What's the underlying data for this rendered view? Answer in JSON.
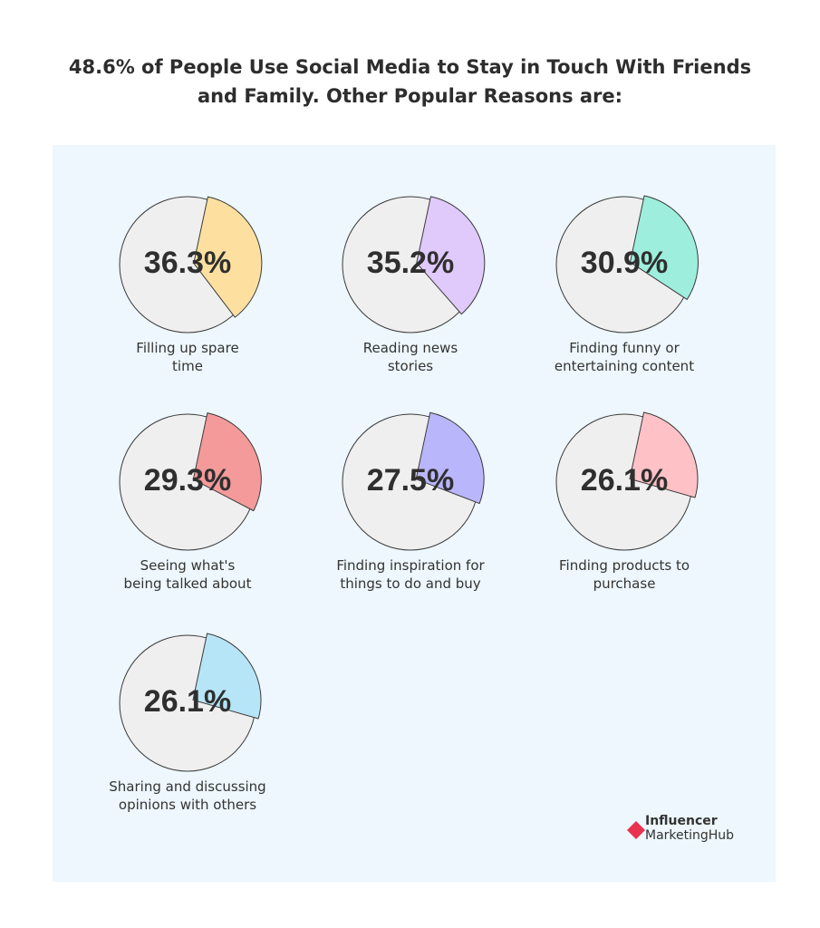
{
  "title": {
    "line1": "48.6% of People Use Social Media to Stay in Touch With Friends",
    "line2": "and Family.  Other Popular Reasons are:"
  },
  "chart_data": {
    "type": "pie",
    "title": "48.6% of People Use Social Media to Stay in Touch With Friends and Family.  Other Popular Reasons are:",
    "items": [
      {
        "label": "Filling up spare time",
        "label_lines": [
          "Filling up spare",
          "time"
        ],
        "value": 36.3,
        "display": "36.3%",
        "color": "#fde0a0"
      },
      {
        "label": "Reading news stories",
        "label_lines": [
          "Reading news",
          "stories"
        ],
        "value": 35.2,
        "display": "35.2%",
        "color": "#e0cafc"
      },
      {
        "label": "Finding funny or entertaining content",
        "label_lines": [
          "Finding funny or",
          "entertaining content"
        ],
        "value": 30.9,
        "display": "30.9%",
        "color": "#9eeedd"
      },
      {
        "label": "Seeing what's being talked about",
        "label_lines": [
          "Seeing what's",
          "being talked about"
        ],
        "value": 29.3,
        "display": "29.3%",
        "color": "#f49a9a"
      },
      {
        "label": "Finding inspiration for things to do and buy",
        "label_lines": [
          "Finding inspiration for",
          "things to do and buy"
        ],
        "value": 27.5,
        "display": "27.5%",
        "color": "#b9b6fb"
      },
      {
        "label": "Finding products to purchase",
        "label_lines": [
          "Finding products to",
          "purchase"
        ],
        "value": 26.1,
        "display": "26.1%",
        "color": "#fdc1c6"
      },
      {
        "label": "Sharing and discussing opinions with others",
        "label_lines": [
          "Sharing and discussing",
          "opinions with others"
        ],
        "value": 26.1,
        "display": "26.1%",
        "color": "#b6e5f7"
      }
    ],
    "remainder_color": "#efefef"
  },
  "logo": {
    "line1": "Influencer",
    "line2": "MarketingHub",
    "color": "#e8334f"
  }
}
